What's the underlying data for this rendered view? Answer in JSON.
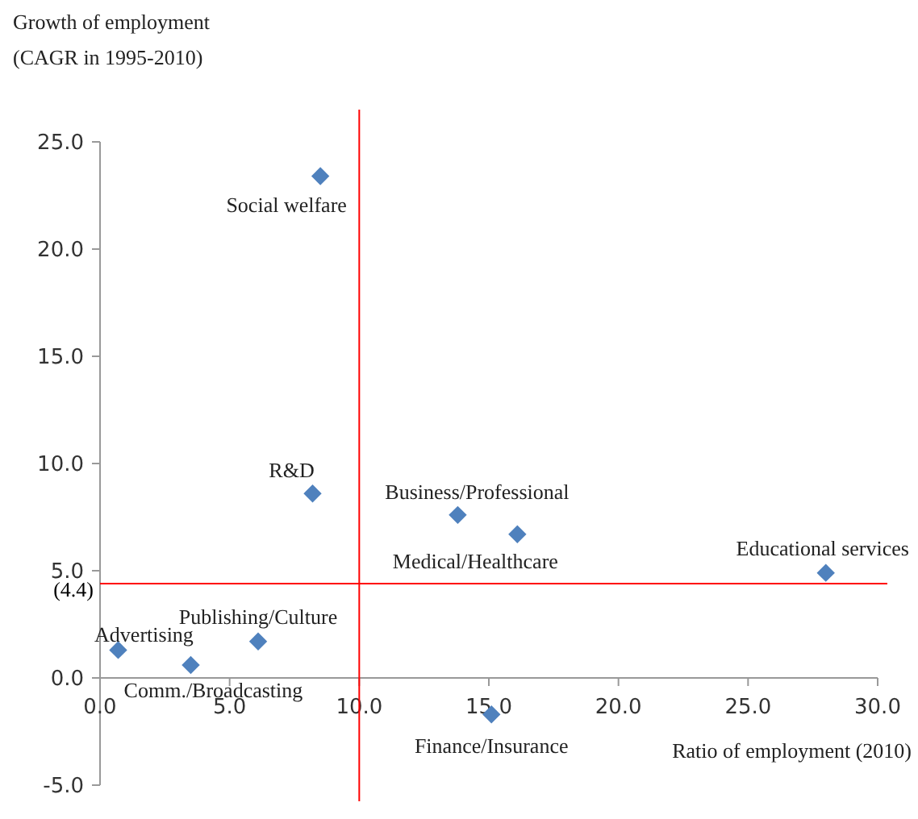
{
  "chart_data": {
    "type": "scatter",
    "ylabel": "Growth of employment\n(CAGR in 1995-2010)",
    "xlabel": "Ratio of employment  (2010)",
    "x": [
      8.5,
      8.2,
      13.8,
      16.1,
      28.0,
      6.1,
      0.7,
      3.5,
      15.1
    ],
    "series": [
      {
        "color": "#4f81bd",
        "values": [
          23.4,
          8.6,
          7.6,
          6.7,
          4.9,
          1.7,
          1.3,
          0.6,
          -1.7
        ]
      }
    ],
    "marker": "diamond",
    "grid": false,
    "xlim": [
      0,
      30
    ],
    "ylim": [
      -5,
      25
    ],
    "xticks": [
      {
        "value": 0,
        "label": "0.0"
      },
      {
        "value": 5,
        "label": "5.0"
      },
      {
        "value": 10,
        "label": "10.0"
      },
      {
        "value": 15,
        "label": "15.0"
      },
      {
        "value": 20,
        "label": "20.0"
      },
      {
        "value": 25,
        "label": "25.0"
      },
      {
        "value": 30,
        "label": "30.0"
      }
    ],
    "yticks": [
      {
        "value": -5,
        "label": "-5.0"
      },
      {
        "value": 0,
        "label": "0.0"
      },
      {
        "value": 5,
        "label": "5.0"
      },
      {
        "value": 10,
        "label": "10.0"
      },
      {
        "value": 15,
        "label": "15.0"
      },
      {
        "value": 20,
        "label": "20.0"
      },
      {
        "value": 25,
        "label": "25.0"
      }
    ],
    "ref_lines": [
      {
        "axis": "x",
        "value": 10,
        "color": "#ff0000"
      },
      {
        "axis": "y",
        "value": 4.4,
        "label": "(4.4)",
        "color": "#ff0000"
      }
    ],
    "annotations": [
      {
        "text": "Social  welfare",
        "x": 8.5,
        "y": 23.4
      },
      {
        "text": "R&D",
        "x": 8.2,
        "y": 8.6
      },
      {
        "text": "Business/Professional",
        "x": 13.8,
        "y": 7.6
      },
      {
        "text": "Medical/Healthcare",
        "x": 16.1,
        "y": 6.7
      },
      {
        "text": "Educational services",
        "x": 28.0,
        "y": 4.9
      },
      {
        "text": "Publishing/Culture",
        "x": 6.1,
        "y": 1.7
      },
      {
        "text": "Advertising",
        "x": 0.7,
        "y": 1.3
      },
      {
        "text": "Comm./Broadcasting",
        "x": 3.5,
        "y": 0.6
      },
      {
        "text": "Finance/Insurance",
        "x": 15.1,
        "y": -1.7
      }
    ]
  }
}
